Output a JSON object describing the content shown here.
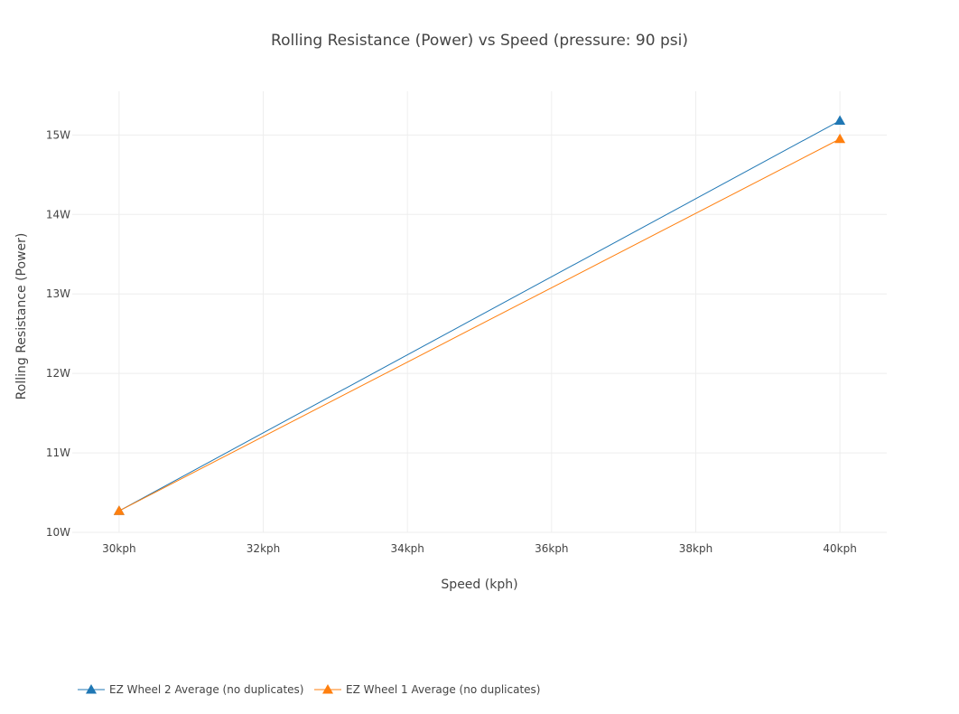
{
  "chart_data": {
    "type": "line",
    "title": "Rolling Resistance (Power) vs Speed (pressure: 90 psi)",
    "xlabel": "Speed (kph)",
    "ylabel": "Rolling Resistance (Power)",
    "x_ticks": [
      "30kph",
      "32kph",
      "34kph",
      "36kph",
      "38kph",
      "40kph"
    ],
    "x_tick_values": [
      30,
      32,
      34,
      36,
      38,
      40
    ],
    "y_ticks": [
      "10W",
      "11W",
      "12W",
      "13W",
      "14W",
      "15W"
    ],
    "y_tick_values": [
      10,
      11,
      12,
      13,
      14,
      15
    ],
    "xlim": [
      29.35,
      40.65
    ],
    "ylim": [
      10,
      15.55
    ],
    "grid": true,
    "legend_position": "bottom-left",
    "marker": "triangle-up",
    "series": [
      {
        "name": "EZ Wheel 2 Average (no duplicates)",
        "color": "#1f77b4",
        "x": [
          30,
          40
        ],
        "y": [
          10.27,
          15.18
        ]
      },
      {
        "name": "EZ Wheel 1 Average (no duplicates)",
        "color": "#ff7f0e",
        "x": [
          30,
          40
        ],
        "y": [
          10.27,
          14.95
        ]
      }
    ]
  }
}
